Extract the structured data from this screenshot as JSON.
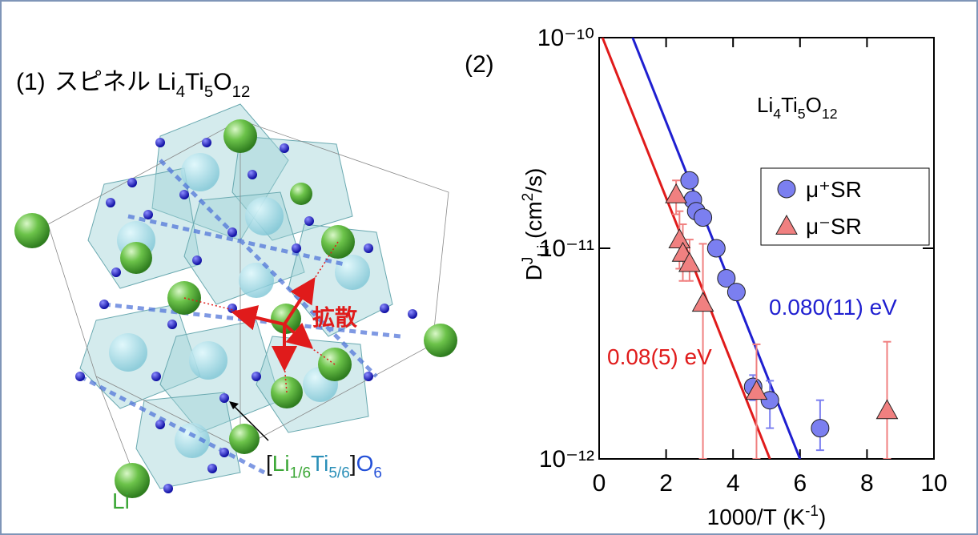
{
  "panel1": {
    "label": "(1)",
    "title": [
      {
        "text": "スピネル"
      },
      {
        "text": " Li"
      },
      {
        "text": "4",
        "shift": "sub"
      },
      {
        "text": "Ti"
      },
      {
        "text": "5",
        "shift": "sub"
      },
      {
        "text": "O"
      },
      {
        "text": "12",
        "shift": "sub"
      }
    ],
    "diffusion_label": "拡散",
    "li_label": "Li",
    "octahedron_label": [
      {
        "text": "[",
        "color": "#111111"
      },
      {
        "text": "Li",
        "color": "#3aa635"
      },
      {
        "text": "1/6",
        "shift": "sub",
        "color": "#3aa635"
      },
      {
        "text": "Ti",
        "color": "#2a8fb8"
      },
      {
        "text": "5/6",
        "shift": "sub",
        "color": "#2a8fb8"
      },
      {
        "text": "]",
        "color": "#111111"
      },
      {
        "text": "O",
        "color": "#2350d8"
      },
      {
        "text": "6",
        "shift": "sub",
        "color": "#2350d8"
      }
    ]
  },
  "chart_data": {
    "type": "scatter",
    "panel_label": "(2)",
    "annotation": [
      {
        "text": "Li"
      },
      {
        "text": "4",
        "shift": "sub"
      },
      {
        "text": "Ti"
      },
      {
        "text": "5",
        "shift": "sub"
      },
      {
        "text": "O"
      },
      {
        "text": "12",
        "shift": "sub"
      }
    ],
    "x_label": [
      {
        "text": "1000/T (K"
      },
      {
        "text": "-1",
        "shift": "sup"
      },
      {
        "text": ")"
      }
    ],
    "y_label": [
      {
        "text": "D"
      },
      {
        "text": "J",
        "shift": "sup"
      },
      {
        "text": "Li",
        "shift": "sub"
      },
      {
        "text": " (cm"
      },
      {
        "text": "2",
        "shift": "sup"
      },
      {
        "text": "/s)"
      }
    ],
    "xlim": [
      0,
      10
    ],
    "xticks": [
      0,
      2,
      4,
      6,
      8,
      10
    ],
    "ylim": [
      1e-12,
      1e-10
    ],
    "yticks": [
      {
        "value": 1e-12,
        "label": "10⁻¹²"
      },
      {
        "value": 1e-11,
        "label": "10⁻¹¹"
      },
      {
        "value": 1e-10,
        "label": "10⁻¹⁰"
      }
    ],
    "log_y": true,
    "legend": "upper right",
    "series": [
      {
        "name": "μ⁺SR",
        "marker": "circle",
        "color": "#7b7ff0",
        "x": [
          2.7,
          2.8,
          2.9,
          3.1,
          3.5,
          3.8,
          4.1,
          4.6,
          5.1,
          6.6
        ],
        "values": [
          2.1e-11,
          1.7e-11,
          1.5e-11,
          1.4e-11,
          1e-11,
          7.2e-12,
          6.2e-12,
          2.2e-12,
          1.9e-12,
          1.4e-12
        ],
        "yerr": [
          [
            1e-12,
            1e-12
          ],
          [
            1e-12,
            1e-12
          ],
          [
            1e-12,
            1e-12
          ],
          [
            1e-12,
            1e-12
          ],
          [
            6e-13,
            6e-13
          ],
          [
            5e-13,
            5e-13
          ],
          [
            4e-13,
            4e-13
          ],
          [
            3e-13,
            3e-13
          ],
          [
            5e-13,
            4.5e-13
          ],
          [
            3e-13,
            5e-13
          ]
        ]
      },
      {
        "name": "μ⁻SR",
        "marker": "triangle",
        "color": "#f08080",
        "x": [
          2.3,
          2.4,
          2.5,
          2.7,
          3.1,
          4.7,
          8.6
        ],
        "values": [
          1.8e-11,
          1.1e-11,
          9.5e-12,
          8.5e-12,
          5.5e-12,
          2.1e-12,
          1.7e-12
        ],
        "yerr": [
          [
            3.5e-12,
            3e-12
          ],
          [
            3e-12,
            4e-12
          ],
          [
            2.5e-12,
            3.5e-12
          ],
          [
            1.5e-12,
            2.5e-12
          ],
          [
            4.5e-12,
            5e-12
          ],
          [
            1.1e-12,
            1.4e-12
          ],
          [
            7e-13,
            1.9e-12
          ]
        ]
      }
    ],
    "fit_lines": [
      {
        "label": "0.080(11) eV",
        "color": "#1f1fd0",
        "x": [
          1.0,
          6.0
        ],
        "values": [
          1e-10,
          1e-12
        ]
      },
      {
        "label": "0.08(5) eV",
        "color": "#e01b1b",
        "x": [
          0.1,
          5.1
        ],
        "values": [
          1e-10,
          1e-12
        ]
      }
    ]
  }
}
